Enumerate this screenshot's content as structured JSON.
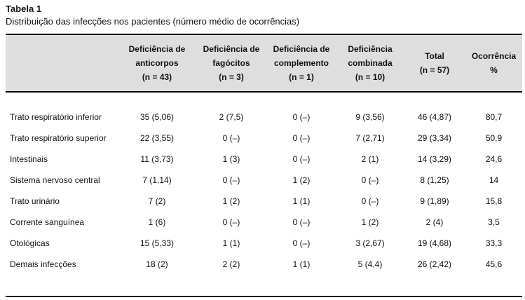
{
  "title": "Tabela 1",
  "subtitle": "Distribuição das infecções nos pacientes (número médio de ocorrências)",
  "colors": {
    "header_background": "#dedede",
    "border": "#000000",
    "text": "#111111"
  },
  "table": {
    "row_label_header": "",
    "columns": [
      "Deficiência de\nanticorpos\n(n = 43)",
      "Deficiência de\nfagócitos\n(n = 3)",
      "Deficiência de\ncomplemento\n(n = 1)",
      "Deficiência\ncombinada\n(n = 10)",
      "Total\n(n = 57)",
      "Ocorrência\n%"
    ],
    "rows": [
      {
        "label": "Trato respiratório inferior",
        "values": [
          "35 (5,06)",
          "2 (7,5)",
          "0 (–)",
          "9 (3,56)",
          "46 (4,87)",
          "80,7"
        ]
      },
      {
        "label": "Trato respiratório superior",
        "values": [
          "22 (3,55)",
          "0 (–)",
          "0 (–)",
          "7 (2,71)",
          "29 (3,34)",
          "50,9"
        ]
      },
      {
        "label": "Intestinais",
        "values": [
          "11 (3,73)",
          "1 (3)",
          "0 (–)",
          "2 (1)",
          "14 (3,29)",
          "24,6"
        ]
      },
      {
        "label": "Sistema nervoso central",
        "values": [
          "7 (1,14)",
          "0 (–)",
          "1 (2)",
          "0 (–)",
          "8 (1,25)",
          "14"
        ]
      },
      {
        "label": "Trato urinário",
        "values": [
          "7 (2)",
          "1 (2)",
          "1 (1)",
          "0 (–)",
          "9 (1,89)",
          "15,8"
        ]
      },
      {
        "label": "Corrente sanguínea",
        "values": [
          "1 (6)",
          "0 (–)",
          "0 (–)",
          "1 (2)",
          "2 (4)",
          "3,5"
        ]
      },
      {
        "label": "Otológicas",
        "values": [
          "15 (5,33)",
          "1 (1)",
          "0 (–)",
          "3 (2,67)",
          "19 (4,68)",
          "33,3"
        ]
      },
      {
        "label": "Demais infecções",
        "values": [
          "18 (2)",
          "2 (2)",
          "1 (1)",
          "5 (4,4)",
          "26 (2,42)",
          "45,6"
        ]
      }
    ]
  }
}
